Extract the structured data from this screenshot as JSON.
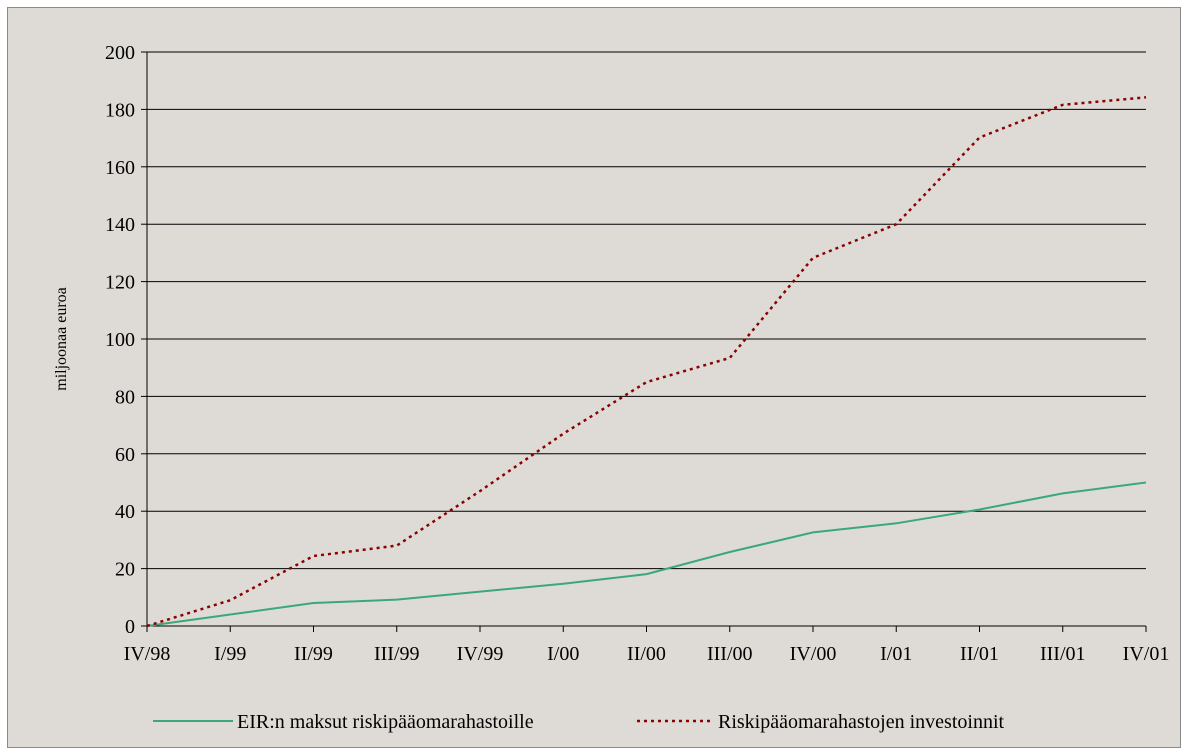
{
  "chart_data": {
    "type": "line",
    "title": "",
    "xlabel": "",
    "ylabel": "miljoonaa euroa",
    "ylim": [
      0,
      200
    ],
    "yticks": [
      0,
      20,
      40,
      60,
      80,
      100,
      120,
      140,
      160,
      180,
      200
    ],
    "grid": "horizontal",
    "legend_position": "bottom",
    "categories": [
      "IV/98",
      "I/99",
      "II/99",
      "III/99",
      "IV/99",
      "I/00",
      "II/00",
      "III/00",
      "IV/00",
      "I/01",
      "II/01",
      "III/01",
      "IV/01"
    ],
    "series": [
      {
        "name": "EIR:n maksut riskipääomarahastoille",
        "color": "#3aa87a",
        "style": "solid",
        "values": [
          0,
          4,
          8,
          9.2,
          12,
          14.7,
          18.1,
          25.8,
          32.6,
          35.8,
          40.6,
          46.2,
          50
        ]
      },
      {
        "name": "Riskipääomarahastojen investoinnit",
        "color": "#8b0000",
        "style": "dotted",
        "values": [
          0,
          9,
          24.4,
          28,
          47,
          67,
          85,
          93.4,
          128.3,
          140,
          170.2,
          181.6,
          184.2
        ]
      }
    ]
  }
}
